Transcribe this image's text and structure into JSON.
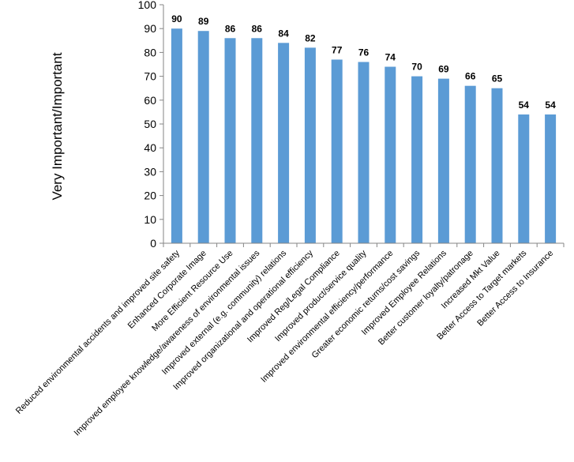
{
  "chart_data": {
    "type": "bar",
    "title": "",
    "xlabel": "",
    "ylabel": "Very Important/Important",
    "ylim": [
      0,
      100
    ],
    "yticks": [
      0,
      10,
      20,
      30,
      40,
      50,
      60,
      70,
      80,
      90,
      100
    ],
    "grid": false,
    "legend": "none",
    "bar_color": "#5b9bd5",
    "categories": [
      "Reduced environmental accidents and improved site safety",
      "Enhanced Corporate Image",
      "More Efficient Resource Use",
      "Improved employee knowledge/awareness of environmental issues",
      "Improved external (e.g. community) relations",
      "Improved organizational and operational efficiency",
      "Improved Reg/Legal Compliance",
      "Improved product/service quality",
      "Improved environmental efficiency/performance",
      "Greater economic returns/cost savings",
      "Improved Employee Relations",
      "Better customer loyalty/patronage",
      "Increased Mkt Value",
      "Better Access to Target markets",
      "Better Access to Insurance"
    ],
    "values": [
      90,
      89,
      86,
      86,
      84,
      82,
      77,
      76,
      74,
      70,
      69,
      66,
      65,
      54,
      54
    ],
    "data_labels": [
      "90",
      "89",
      "86",
      "86",
      "84",
      "82",
      "77",
      "76",
      "74",
      "70",
      "69",
      "66",
      "65",
      "54",
      "54"
    ]
  }
}
